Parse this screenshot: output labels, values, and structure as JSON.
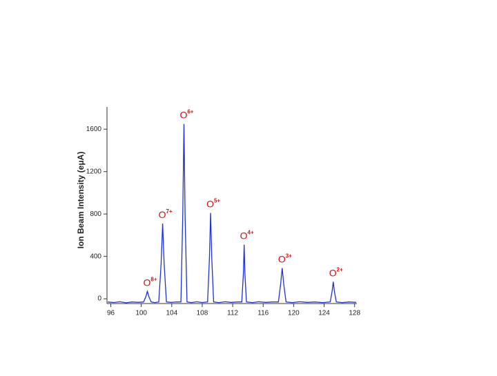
{
  "chart_data": {
    "type": "line",
    "ylabel": "Ion Beam Intensity (eμA)",
    "xlim": [
      95.5,
      128.3
    ],
    "ylim": [
      -45,
      1810
    ],
    "xticks": [
      96,
      100,
      104,
      108,
      112,
      116,
      120,
      124,
      128
    ],
    "yticks": [
      0,
      400,
      800,
      1200,
      1600
    ],
    "series": [
      {
        "color": "#1f2fd6",
        "x": [
          95.6,
          96.4,
          97.2,
          98.0,
          98.8,
          99.6,
          100.3,
          100.6,
          100.8,
          101.0,
          101.3,
          101.8,
          102.3,
          102.6,
          102.8,
          103.0,
          103.3,
          103.9,
          104.6,
          105.2,
          105.45,
          105.6,
          105.75,
          106.0,
          106.6,
          107.3,
          108.0,
          108.7,
          108.95,
          109.1,
          109.25,
          109.5,
          110.2,
          111.0,
          111.8,
          112.6,
          113.2,
          113.4,
          113.5,
          113.6,
          113.8,
          114.6,
          115.4,
          116.3,
          117.2,
          118.0,
          118.3,
          118.5,
          118.7,
          119.0,
          119.8,
          120.8,
          121.8,
          122.8,
          123.8,
          124.8,
          125.05,
          125.2,
          125.35,
          125.6,
          126.4,
          127.3,
          128.2
        ],
        "values": [
          -30,
          -35,
          -28,
          -38,
          -30,
          -33,
          -30,
          20,
          70,
          20,
          -30,
          -36,
          -30,
          330,
          710,
          330,
          -30,
          -34,
          -30,
          -30,
          800,
          1650,
          800,
          -30,
          -36,
          -28,
          -35,
          -30,
          380,
          810,
          380,
          -30,
          -36,
          -28,
          -34,
          -30,
          -30,
          240,
          510,
          240,
          -30,
          -36,
          -28,
          -34,
          -30,
          -30,
          140,
          290,
          140,
          -30,
          -36,
          -28,
          -34,
          -30,
          -36,
          -30,
          70,
          160,
          70,
          -30,
          -36,
          -30,
          -34
        ]
      }
    ],
    "annotations": [
      {
        "text": "O",
        "charge": "8+"
      },
      {
        "text": "O",
        "charge": "7+"
      },
      {
        "text": "O",
        "charge": "6+"
      },
      {
        "text": "O",
        "charge": "5+"
      },
      {
        "text": "O",
        "charge": "4+"
      },
      {
        "text": "O",
        "charge": "3+"
      },
      {
        "text": "O",
        "charge": "2+"
      }
    ]
  }
}
